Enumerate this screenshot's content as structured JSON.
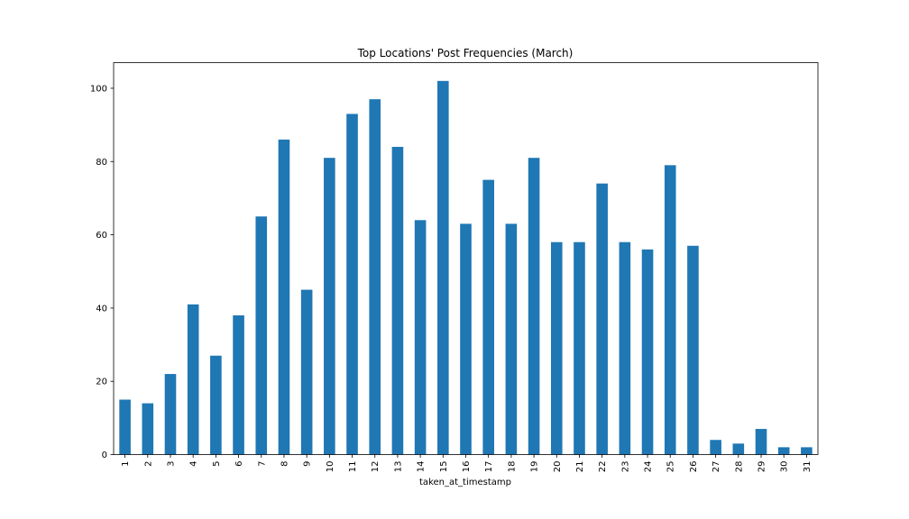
{
  "chart_data": {
    "type": "bar",
    "title": "Top Locations' Post Frequencies (March)",
    "xlabel": "taken_at_timestamp",
    "ylabel": "",
    "categories": [
      "1",
      "2",
      "3",
      "4",
      "5",
      "6",
      "7",
      "8",
      "9",
      "10",
      "11",
      "12",
      "13",
      "14",
      "15",
      "16",
      "17",
      "18",
      "19",
      "20",
      "21",
      "22",
      "23",
      "24",
      "25",
      "26",
      "27",
      "28",
      "29",
      "30",
      "31"
    ],
    "values": [
      15,
      14,
      22,
      41,
      27,
      38,
      65,
      86,
      45,
      81,
      93,
      97,
      84,
      64,
      102,
      63,
      75,
      63,
      81,
      58,
      58,
      74,
      58,
      56,
      79,
      57,
      4,
      3,
      7,
      2,
      2
    ],
    "ylim": [
      0,
      107
    ],
    "yticks": [
      0,
      20,
      40,
      60,
      80,
      100
    ],
    "grid": false,
    "bar_color": "#1f77b4"
  }
}
